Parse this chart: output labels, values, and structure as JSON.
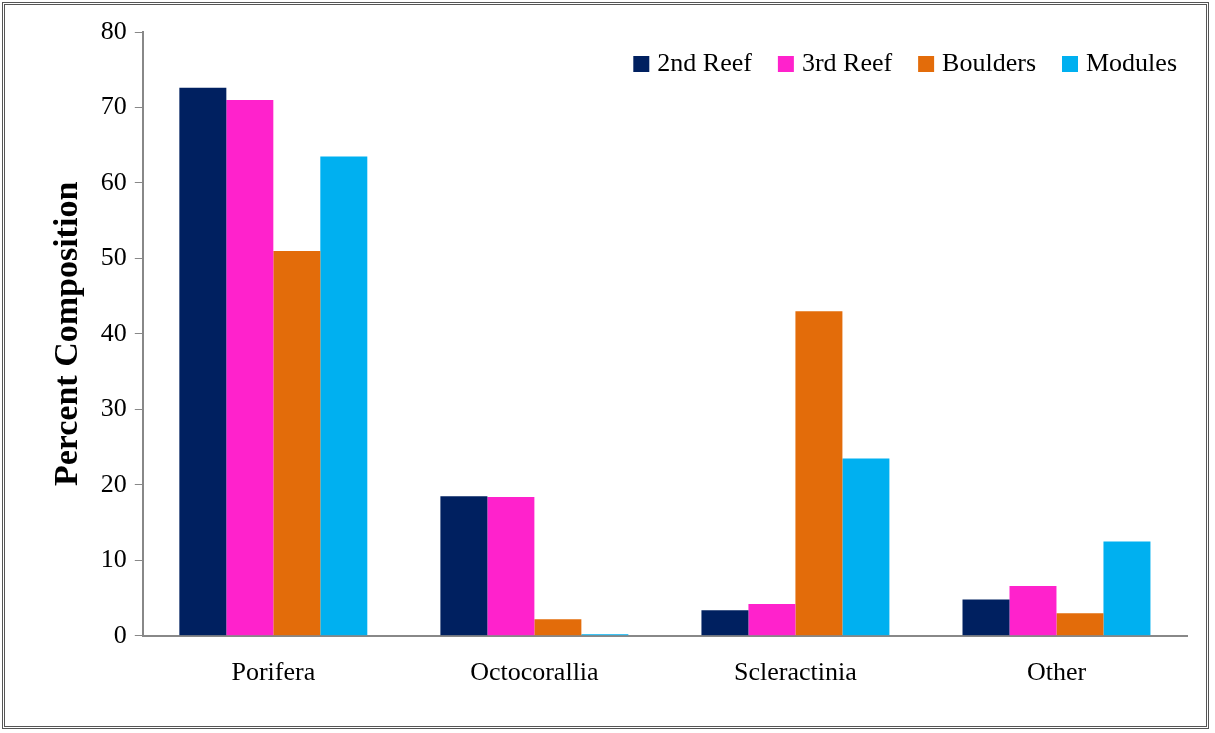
{
  "chart_data": {
    "type": "bar",
    "ylabel": "Percent Composition",
    "categories": [
      "Porifera",
      "Octocorallia",
      "Scleractinia",
      "Other"
    ],
    "series": [
      {
        "name": "2nd Reef",
        "color": "#002060",
        "values": [
          72.6,
          18.5,
          3.4,
          4.8
        ]
      },
      {
        "name": "3rd Reef",
        "color": "#ff22cc",
        "values": [
          71.0,
          18.4,
          4.2,
          6.6
        ]
      },
      {
        "name": "Boulders",
        "color": "#e36c0a",
        "values": [
          51.0,
          2.2,
          43.0,
          3.0
        ]
      },
      {
        "name": "Modules",
        "color": "#00b0f0",
        "values": [
          63.5,
          0.2,
          23.5,
          12.5
        ]
      }
    ],
    "ylim": [
      0,
      80
    ],
    "yticks": [
      0,
      10,
      20,
      30,
      40,
      50,
      60,
      70,
      80
    ],
    "grid": false,
    "legend": "top right"
  }
}
